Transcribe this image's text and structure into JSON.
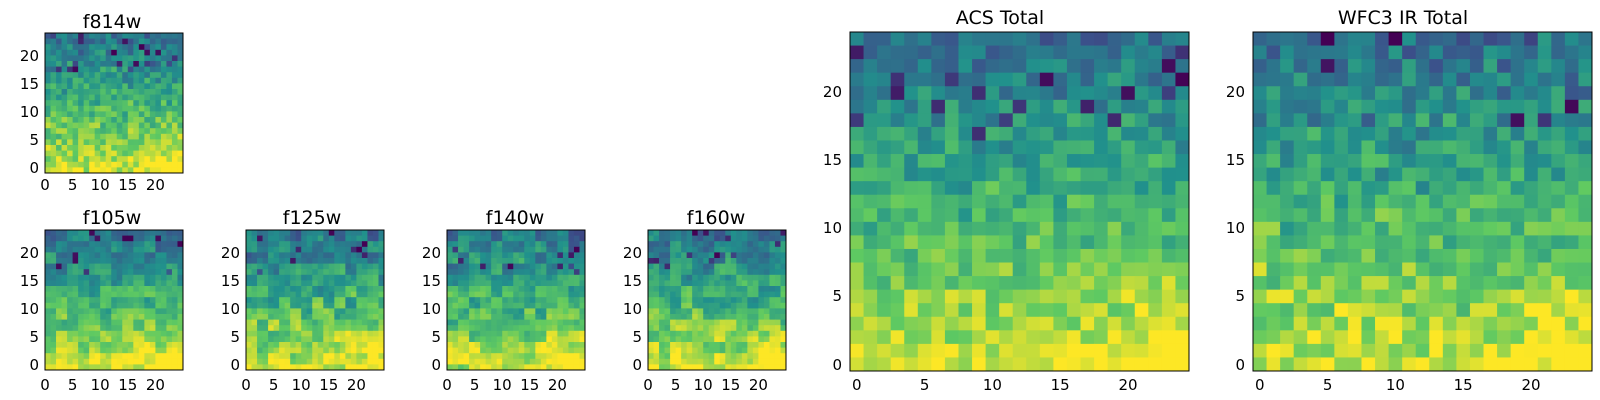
{
  "figure": {
    "background": "#ffffff",
    "colormap": "viridis"
  },
  "chart_data": [
    {
      "id": "f814w",
      "type": "heatmap",
      "title": "f814w",
      "grid_size": 25,
      "xlim": [
        0,
        24
      ],
      "ylim": [
        0,
        24
      ],
      "xticks": [
        0,
        5,
        10,
        15,
        20
      ],
      "yticks": [
        0,
        5,
        10,
        15,
        20
      ],
      "value_range": [
        0,
        1
      ],
      "noise": 0.14,
      "seed": 814,
      "cell_pattern": "fine",
      "bright_corner": "bottom-right"
    },
    {
      "id": "f105w",
      "type": "heatmap",
      "title": "f105w",
      "grid_size": 25,
      "xlim": [
        0,
        24
      ],
      "ylim": [
        0,
        24
      ],
      "xticks": [
        0,
        5,
        10,
        15,
        20
      ],
      "yticks": [
        0,
        5,
        10,
        15,
        20
      ],
      "value_range": [
        0,
        1
      ],
      "noise": 0.14,
      "seed": 105,
      "cell_pattern": "blocky",
      "bright_corner": "bottom-right"
    },
    {
      "id": "f125w",
      "type": "heatmap",
      "title": "f125w",
      "grid_size": 25,
      "xlim": [
        0,
        24
      ],
      "ylim": [
        0,
        24
      ],
      "xticks": [
        0,
        5,
        10,
        15,
        20
      ],
      "yticks": [
        0,
        5,
        10,
        15,
        20
      ],
      "value_range": [
        0,
        1
      ],
      "noise": 0.16,
      "seed": 125,
      "cell_pattern": "blocky",
      "bright_corner": "bottom-right"
    },
    {
      "id": "f140w",
      "type": "heatmap",
      "title": "f140w",
      "grid_size": 25,
      "xlim": [
        0,
        24
      ],
      "ylim": [
        0,
        24
      ],
      "xticks": [
        0,
        5,
        10,
        15,
        20
      ],
      "yticks": [
        0,
        5,
        10,
        15,
        20
      ],
      "value_range": [
        0,
        1
      ],
      "noise": 0.16,
      "seed": 140,
      "cell_pattern": "blocky",
      "bright_corner": "bottom-right"
    },
    {
      "id": "f160w",
      "type": "heatmap",
      "title": "f160w",
      "grid_size": 25,
      "xlim": [
        0,
        24
      ],
      "ylim": [
        0,
        24
      ],
      "xticks": [
        0,
        5,
        10,
        15,
        20
      ],
      "yticks": [
        0,
        5,
        10,
        15,
        20
      ],
      "value_range": [
        0,
        1
      ],
      "noise": 0.15,
      "seed": 160,
      "cell_pattern": "blocky",
      "bright_corner": "bottom-right"
    },
    {
      "id": "acs-total",
      "type": "heatmap",
      "title": "ACS Total",
      "grid_size": 25,
      "xlim": [
        0,
        24
      ],
      "ylim": [
        0,
        24
      ],
      "xticks": [
        0,
        5,
        10,
        15,
        20
      ],
      "yticks": [
        0,
        5,
        10,
        15,
        20
      ],
      "value_range": [
        0,
        1
      ],
      "noise": 0.13,
      "seed": 9001,
      "cell_pattern": "fine",
      "bright_corner": "bottom-right"
    },
    {
      "id": "wfc3-ir-total",
      "type": "heatmap",
      "title": "WFC3 IR Total",
      "grid_size": 25,
      "xlim": [
        0,
        24
      ],
      "ylim": [
        0,
        24
      ],
      "xticks": [
        0,
        5,
        10,
        15,
        20
      ],
      "yticks": [
        0,
        5,
        10,
        15,
        20
      ],
      "value_range": [
        0,
        1
      ],
      "noise": 0.15,
      "seed": 3003,
      "cell_pattern": "fine",
      "bright_corner": "bottom-right"
    }
  ]
}
